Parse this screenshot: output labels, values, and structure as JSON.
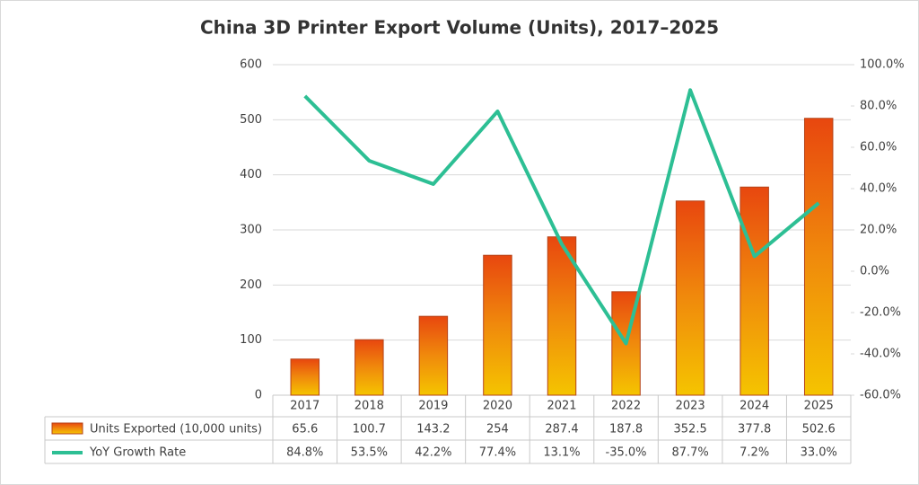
{
  "chart_data": {
    "type": "bar",
    "title": "China 3D Printer Export Volume (Units), 2017–2025",
    "categories": [
      "2017",
      "2018",
      "2019",
      "2020",
      "2021",
      "2022",
      "2023",
      "2024",
      "2025"
    ],
    "series": [
      {
        "name": "Units Exported (10,000 units)",
        "color": "#f08a0c",
        "values": [
          65.6,
          100.7,
          143.2,
          254,
          287.4,
          187.8,
          352.5,
          377.8,
          502.6
        ]
      },
      {
        "name": "YoY Growth Rate",
        "type": "line",
        "axis": "y2",
        "color": "#2dbf94",
        "values": [
          84.8,
          53.5,
          42.2,
          77.4,
          13.1,
          -35.0,
          87.7,
          7.2,
          33.0
        ],
        "value_labels": [
          "84.8%",
          "53.5%",
          "42.2%",
          "77.4%",
          "13.1%",
          "-35.0%",
          "87.7%",
          "7.2%",
          "33.0%"
        ]
      }
    ],
    "ylim": [
      0,
      600
    ],
    "yticks": [
      0,
      100,
      200,
      300,
      400,
      500,
      600
    ],
    "y2lim": [
      -60,
      100
    ],
    "y2ticks": [
      {
        "value": -60,
        "label": "-60.0%"
      },
      {
        "value": -40,
        "label": "-40.0%"
      },
      {
        "value": -20,
        "label": "-20.0%"
      },
      {
        "value": 0,
        "label": "0.0%"
      },
      {
        "value": 20,
        "label": "20.0%"
      },
      {
        "value": 40,
        "label": "40.0%"
      },
      {
        "value": 60,
        "label": "60.0%"
      },
      {
        "value": 80,
        "label": "80.0%"
      },
      {
        "value": 100,
        "label": "100.0%"
      }
    ],
    "grid": true
  }
}
